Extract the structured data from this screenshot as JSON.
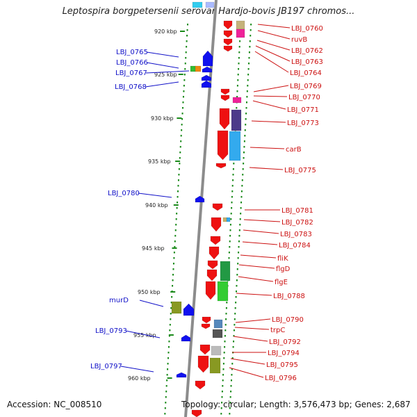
{
  "title": "Leptospira borgpetersenii serovar Hardjo-bovis JB197 chromos...",
  "accession": "Accession: NC_008510",
  "topology": "Topology: circular; Length: 3,576,473 bp; Genes: 2,687",
  "colors": {
    "backbone": "#8c8c8c",
    "ticks": "#1a8a1a",
    "left_labels": "#1010c8",
    "right_labels": "#cc1010",
    "forward_gene": "#1010ee",
    "reverse_gene": "#ee1111"
  },
  "ruler": [
    {
      "label": "920 kbp"
    },
    {
      "label": "925 kbp"
    },
    {
      "label": "930 kbp"
    },
    {
      "label": "935 kbp"
    },
    {
      "label": "940 kbp"
    },
    {
      "label": "945 kbp"
    },
    {
      "label": "950 kbp"
    },
    {
      "label": "955 kbp"
    },
    {
      "label": "960 kbp"
    }
  ],
  "left_labels": [
    "LBJ_0765",
    "LBJ_0766",
    "LBJ_0767",
    "LBJ_0768",
    "LBJ_0780",
    "murD",
    "LBJ_0793",
    "LBJ_0797"
  ],
  "right_labels": [
    "LBJ_0760",
    "ruvB",
    "LBJ_0762",
    "LBJ_0763",
    "LBJ_0764",
    "LBJ_0769",
    "LBJ_0770",
    "LBJ_0771",
    "LBJ_0773",
    "carB",
    "LBJ_0775",
    "LBJ_0781",
    "LBJ_0782",
    "LBJ_0783",
    "LBJ_0784",
    "fliK",
    "flgD",
    "flgE",
    "LBJ_0788",
    "LBJ_0790",
    "trpC",
    "LBJ_0792",
    "LBJ_0794",
    "LBJ_0795",
    "LBJ_0796"
  ]
}
